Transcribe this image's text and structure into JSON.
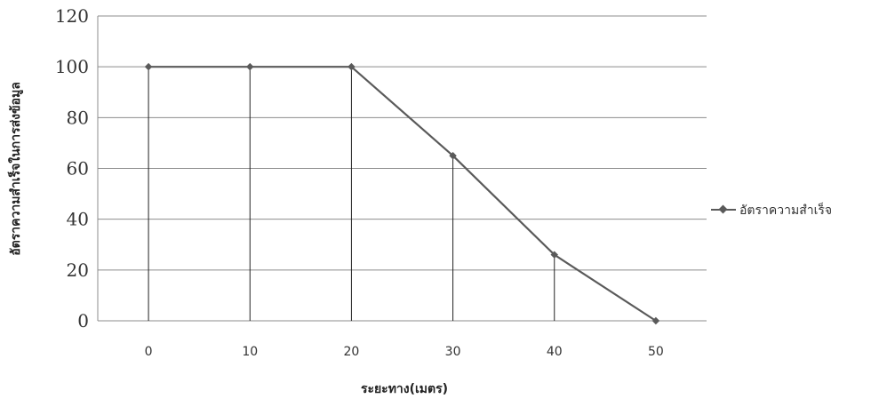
{
  "chart_data": {
    "type": "line",
    "categories": [
      "0",
      "10",
      "20",
      "30",
      "40",
      "50"
    ],
    "series": [
      {
        "name": "อัตราความสำเร็จ",
        "values": [
          100,
          100,
          100,
          65,
          26,
          0
        ]
      }
    ],
    "xlabel": "ระยะทาง(เมตร)",
    "ylabel": "อัตราความสำเร็จในการส่งข้อมูล",
    "ylim": [
      0,
      120
    ],
    "yticks": [
      0,
      20,
      40,
      60,
      80,
      100,
      120
    ],
    "grid": true,
    "drop_lines": true,
    "legend_position": "right",
    "colors": {
      "series": "#5a5a5a",
      "grid": "#8c8c8c",
      "drop": "#222222"
    }
  }
}
